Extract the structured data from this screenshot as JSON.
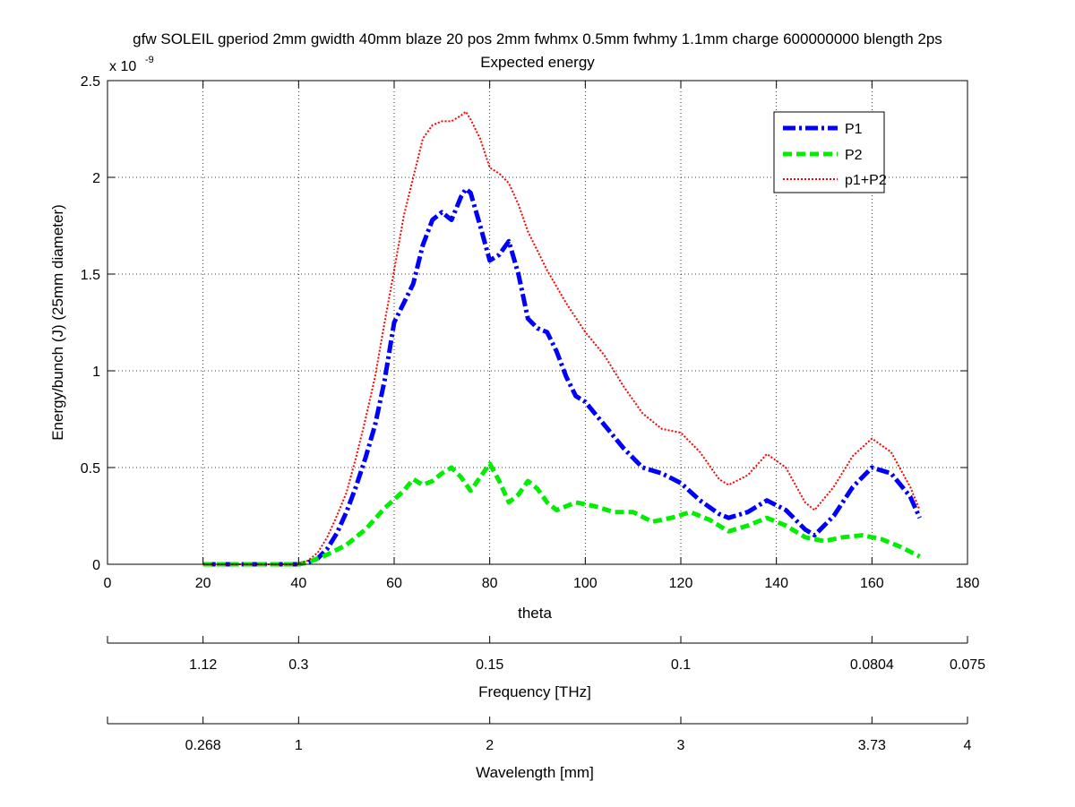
{
  "chart_data": {
    "type": "line",
    "title": "gfw SOLEIL gperiod 2mm gwidth 40mm blaze 20 pos 2mm fwhmx 0.5mm fwhmy 1.1mm charge 600000000 blength 2ps",
    "subtitle": "Expected energy",
    "xlabel": "theta",
    "ylabel": "Energy/bunch (J) (25mm diameter)",
    "y_exponent": "x 10",
    "y_exponent_power": "-9",
    "xlim": [
      0,
      180
    ],
    "ylim": [
      0,
      2.5
    ],
    "x_ticks": [
      0,
      20,
      40,
      60,
      80,
      100,
      120,
      140,
      160,
      180
    ],
    "y_ticks": [
      0,
      0.5,
      1,
      1.5,
      2,
      2.5
    ],
    "x_tick_labels": [
      "0",
      "20",
      "40",
      "60",
      "80",
      "100",
      "120",
      "140",
      "160",
      "180"
    ],
    "y_tick_labels": [
      "0",
      "0.5",
      "1",
      "1.5",
      "2",
      "2.5"
    ],
    "grid": true,
    "legend_position": "top-right",
    "series": [
      {
        "name": "P1",
        "color": "#0000ff",
        "style": "dash-dot",
        "x": [
          20,
          25,
          30,
          35,
          40,
          42,
          44,
          46,
          48,
          50,
          52,
          54,
          56,
          58,
          60,
          62,
          64,
          66,
          68,
          70,
          72,
          74,
          75,
          76,
          78,
          80,
          82,
          84,
          86,
          88,
          90,
          92,
          94,
          96,
          98,
          100,
          104,
          108,
          112,
          116,
          120,
          124,
          128,
          130,
          134,
          138,
          142,
          146,
          148,
          152,
          156,
          160,
          164,
          168,
          170
        ],
        "values": [
          0,
          0,
          0,
          0,
          0,
          0.01,
          0.03,
          0.08,
          0.16,
          0.27,
          0.4,
          0.55,
          0.72,
          0.95,
          1.25,
          1.35,
          1.45,
          1.65,
          1.78,
          1.82,
          1.78,
          1.9,
          1.94,
          1.92,
          1.75,
          1.57,
          1.6,
          1.67,
          1.5,
          1.27,
          1.22,
          1.2,
          1.1,
          0.97,
          0.87,
          0.84,
          0.72,
          0.6,
          0.5,
          0.47,
          0.42,
          0.33,
          0.26,
          0.24,
          0.27,
          0.33,
          0.28,
          0.18,
          0.15,
          0.25,
          0.4,
          0.5,
          0.47,
          0.35,
          0.24
        ]
      },
      {
        "name": "P2",
        "color": "#00ee00",
        "style": "dashed",
        "x": [
          20,
          25,
          30,
          35,
          40,
          42,
          46,
          50,
          54,
          58,
          62,
          64,
          66,
          68,
          70,
          72,
          74,
          76,
          78,
          80,
          82,
          84,
          86,
          88,
          90,
          92,
          94,
          98,
          102,
          106,
          110,
          114,
          118,
          122,
          126,
          130,
          134,
          138,
          142,
          146,
          150,
          154,
          158,
          162,
          166,
          170
        ],
        "values": [
          0,
          0,
          0,
          0,
          0,
          0.01,
          0.05,
          0.1,
          0.18,
          0.29,
          0.38,
          0.44,
          0.41,
          0.43,
          0.47,
          0.5,
          0.45,
          0.38,
          0.45,
          0.52,
          0.43,
          0.32,
          0.36,
          0.43,
          0.39,
          0.32,
          0.28,
          0.32,
          0.3,
          0.27,
          0.27,
          0.22,
          0.24,
          0.27,
          0.23,
          0.17,
          0.2,
          0.24,
          0.2,
          0.14,
          0.12,
          0.14,
          0.15,
          0.13,
          0.09,
          0.04
        ]
      },
      {
        "name": "p1+P2",
        "color": "#ff0000",
        "style": "dotted",
        "x": [
          20,
          25,
          30,
          35,
          40,
          42,
          44,
          46,
          48,
          50,
          52,
          54,
          56,
          58,
          60,
          62,
          64,
          66,
          68,
          70,
          72,
          74,
          75,
          76,
          78,
          80,
          82,
          84,
          86,
          88,
          90,
          92,
          96,
          100,
          104,
          108,
          112,
          116,
          120,
          124,
          128,
          130,
          134,
          138,
          142,
          146,
          148,
          152,
          156,
          160,
          164,
          168,
          170
        ],
        "values": [
          0,
          0,
          0,
          0,
          0,
          0.02,
          0.06,
          0.14,
          0.25,
          0.37,
          0.55,
          0.75,
          0.97,
          1.25,
          1.52,
          1.8,
          2.0,
          2.2,
          2.27,
          2.29,
          2.29,
          2.32,
          2.34,
          2.3,
          2.2,
          2.05,
          2.02,
          1.97,
          1.86,
          1.72,
          1.62,
          1.52,
          1.35,
          1.2,
          1.08,
          0.92,
          0.78,
          0.7,
          0.68,
          0.58,
          0.44,
          0.41,
          0.46,
          0.57,
          0.5,
          0.32,
          0.28,
          0.4,
          0.56,
          0.65,
          0.58,
          0.4,
          0.28
        ]
      }
    ],
    "secondary_axes": [
      {
        "label": "Frequency [THz]",
        "tick_labels": [
          "1.12",
          "0.3",
          "0.15",
          "0.1",
          "0.0804",
          "0.075"
        ]
      },
      {
        "label": "Wavelength [mm]",
        "tick_labels": [
          "0.268",
          "1",
          "2",
          "3",
          "3.73",
          "4"
        ]
      }
    ]
  }
}
